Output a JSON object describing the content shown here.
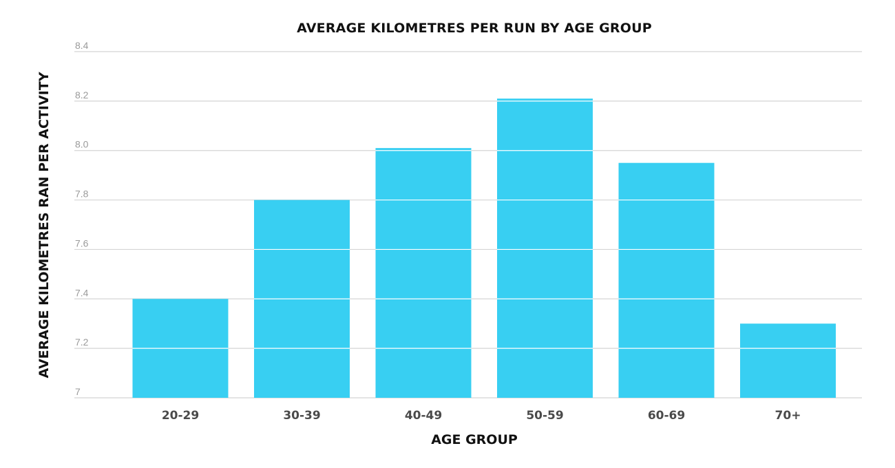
{
  "chart_data": {
    "type": "bar",
    "title": "AVERAGE KILOMETRES PER RUN BY AGE GROUP",
    "xlabel": "AGE GROUP",
    "ylabel": "AVERAGE KILOMETRES RAN PER ACTIVITY",
    "categories": [
      "20-29",
      "30-39",
      "40-49",
      "50-59",
      "60-69",
      "70+"
    ],
    "values": [
      7.4,
      7.8,
      8.01,
      8.21,
      7.95,
      7.3
    ],
    "ylim": [
      7,
      8.4
    ],
    "yticks": [
      "7",
      "7.2",
      "7.4",
      "7.6",
      "7.8",
      "8.0",
      "8.2",
      "8.4"
    ],
    "grid": true,
    "bar_color": "#38CFF2",
    "legend": "none"
  }
}
